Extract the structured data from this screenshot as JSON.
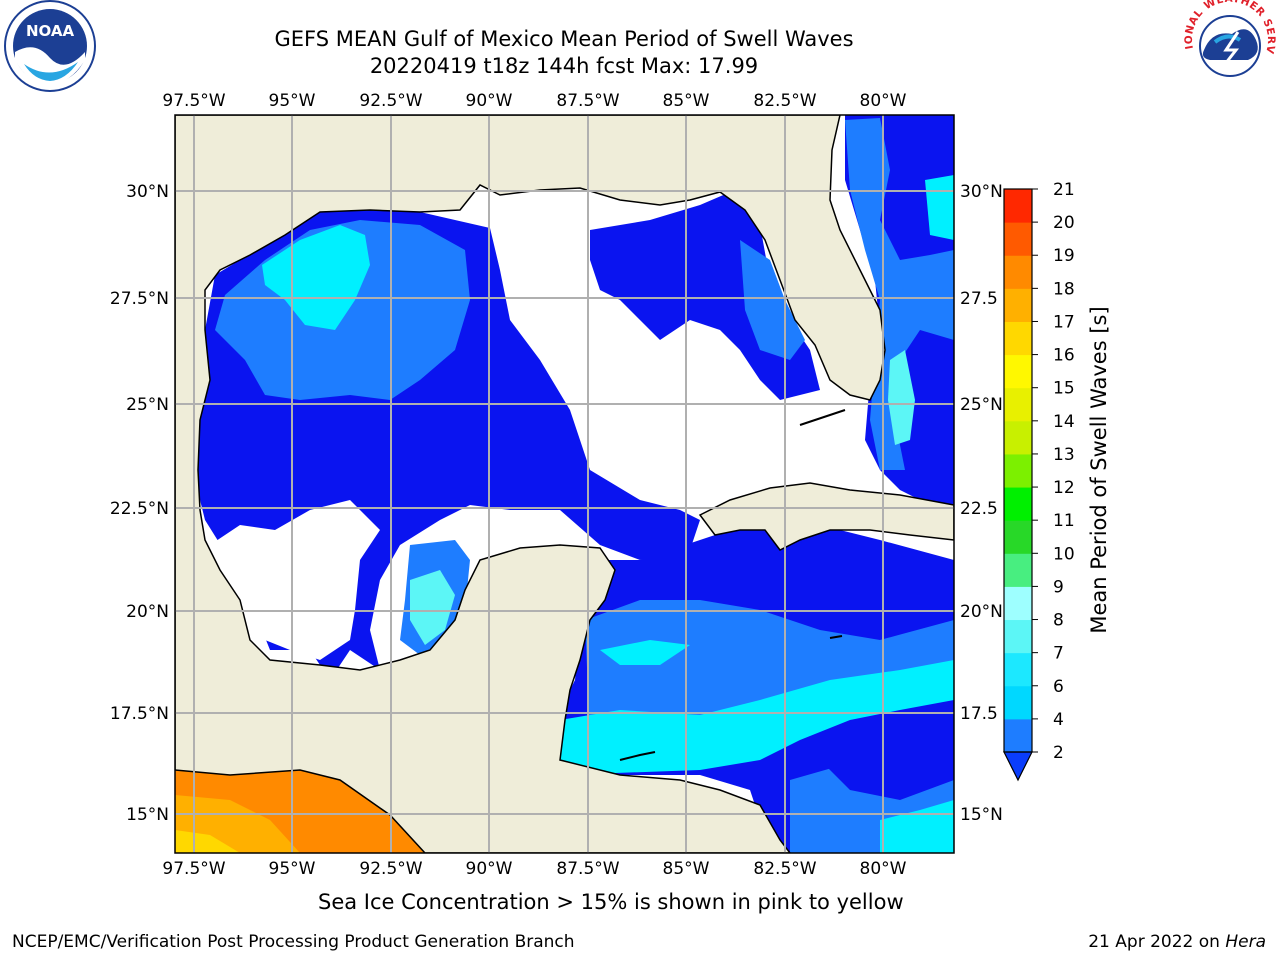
{
  "title": "GEFS MEAN Gulf of Mexico Mean Period of Swell Waves",
  "subtitle": "20220419 t18z 144h fcst   Max: 17.99",
  "caption": "Sea Ice Concentration > 15% is shown in pink to yellow",
  "footer": {
    "left": "NCEP/EMC/Verification Post Processing Product Generation Branch",
    "right_date": "21 Apr 2022 on ",
    "right_machine": "Hera"
  },
  "logos": {
    "left": "NOAA",
    "right": "NATIONAL WEATHER SERVICE"
  },
  "map": {
    "lon_labels": [
      "97.5°W",
      "95°W",
      "92.5°W",
      "90°W",
      "87.5°W",
      "85°W",
      "82.5°W",
      "80°W"
    ],
    "lat_labels_left": [
      "30°N",
      "27.5°N",
      "25°N",
      "22.5°N",
      "20°N",
      "17.5°N",
      "15°N"
    ],
    "lat_labels_right": [
      "30°N",
      "27.5",
      "25°N",
      "22.5",
      "20°N",
      "17.5",
      "15°N"
    ],
    "colors": {
      "land": "#efedd9",
      "coast": "#000000",
      "grid": "#b0b0b0"
    }
  },
  "colorbar": {
    "label": "Mean Period of Swell Waves [s]",
    "ticks": [
      "2",
      "4",
      "6",
      "7",
      "8",
      "9",
      "10",
      "11",
      "12",
      "13",
      "14",
      "15",
      "16",
      "17",
      "18",
      "19",
      "20",
      "21"
    ],
    "colors": [
      "#0a3dfb",
      "#1e7dff",
      "#00d8ff",
      "#1ce8ff",
      "#5cf6f6",
      "#9effff",
      "#48ee80",
      "#28d828",
      "#00f000",
      "#7cf000",
      "#c8f000",
      "#e8f000",
      "#fff800",
      "#ffd800",
      "#ffb000",
      "#ff8a00",
      "#ff5a00",
      "#ff2800",
      "#ff0000"
    ]
  }
}
